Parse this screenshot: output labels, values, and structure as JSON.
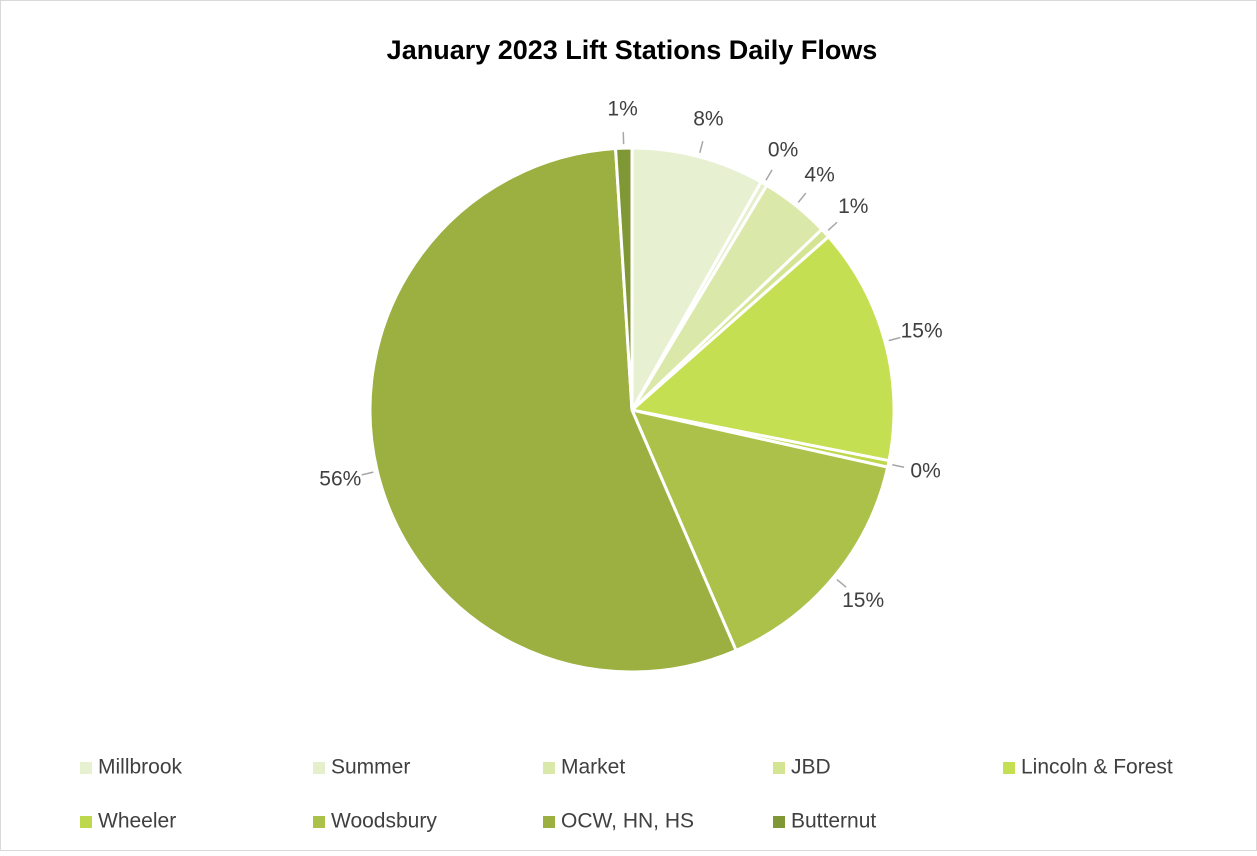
{
  "chart_data": {
    "type": "pie",
    "title": "January 2023 Lift Stations Daily Flows",
    "categories": [
      "Millbrook",
      "Summer",
      "Market",
      "JBD",
      "Lincoln & Forest",
      "Wheeler",
      "Woodsbury",
      "OCW, HN, HS",
      "Butternut"
    ],
    "values": [
      8.2,
      0.4,
      4.3,
      0.6,
      14.6,
      0.4,
      15.0,
      55.5,
      1.0
    ],
    "value_labels": [
      "8%",
      "0%",
      "4%",
      "1%",
      "15%",
      "0%",
      "15%",
      "56%",
      "1%"
    ],
    "colors": [
      "#e7f1d2",
      "#e4efcc",
      "#dae9aa",
      "#d3e592",
      "#c5df52",
      "#bdd84c",
      "#abc14a",
      "#9caf41",
      "#7f9835"
    ],
    "legend": "bottom"
  }
}
